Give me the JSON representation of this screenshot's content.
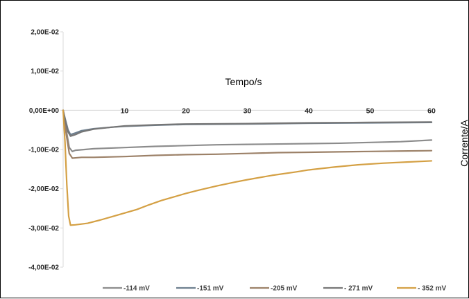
{
  "chart_data": {
    "type": "line",
    "title": "",
    "xlabel": "Tempo/s",
    "ylabel": "Corrente/A",
    "xlim": [
      0,
      60
    ],
    "ylim": [
      -0.04,
      0.02
    ],
    "x_ticks": [
      10,
      20,
      30,
      40,
      50,
      60
    ],
    "x_tick_labels": [
      "10",
      "20",
      "30",
      "40",
      "50",
      "60"
    ],
    "y_ticks": [
      0.02,
      0.01,
      0,
      -0.01,
      -0.02,
      -0.03,
      -0.04
    ],
    "y_tick_labels": [
      "2,00E-02",
      "1,00E-02",
      "0,00E+00",
      "-1,00E-02",
      "-2,00E-02",
      "-3,00E-02",
      "-4,00E-02"
    ],
    "grid": false,
    "legend_position": "bottom",
    "series": [
      {
        "name": "-114 mV",
        "color": "#8c8c8c",
        "points": [
          [
            0,
            0
          ],
          [
            0.5,
            -0.005
          ],
          [
            1,
            -0.0095
          ],
          [
            1.5,
            -0.0105
          ],
          [
            2,
            -0.0102
          ],
          [
            5,
            -0.0098
          ],
          [
            10,
            -0.0095
          ],
          [
            15,
            -0.0092
          ],
          [
            20,
            -0.009
          ],
          [
            25,
            -0.0088
          ],
          [
            30,
            -0.0087
          ],
          [
            35,
            -0.0086
          ],
          [
            40,
            -0.0085
          ],
          [
            45,
            -0.0084
          ],
          [
            50,
            -0.0082
          ],
          [
            55,
            -0.008
          ],
          [
            60,
            -0.0076
          ]
        ]
      },
      {
        "name": "-151 mV",
        "color": "#6d7f8f",
        "points": [
          [
            0,
            0
          ],
          [
            0.3,
            -0.002
          ],
          [
            0.8,
            -0.005
          ],
          [
            1.2,
            -0.0062
          ],
          [
            2,
            -0.0058
          ],
          [
            3,
            -0.0052
          ],
          [
            5,
            -0.0047
          ],
          [
            8,
            -0.0043
          ],
          [
            10,
            -0.0041
          ],
          [
            15,
            -0.0038
          ],
          [
            20,
            -0.0036
          ],
          [
            30,
            -0.0035
          ],
          [
            40,
            -0.0033
          ],
          [
            50,
            -0.0032
          ],
          [
            60,
            -0.0031
          ]
        ]
      },
      {
        "name": "-205 mV",
        "color": "#9c8168",
        "points": [
          [
            0,
            0
          ],
          [
            0.5,
            -0.006
          ],
          [
            1,
            -0.011
          ],
          [
            1.5,
            -0.0122
          ],
          [
            3,
            -0.012
          ],
          [
            5,
            -0.012
          ],
          [
            10,
            -0.0118
          ],
          [
            15,
            -0.0115
          ],
          [
            20,
            -0.0113
          ],
          [
            25,
            -0.0112
          ],
          [
            30,
            -0.011
          ],
          [
            35,
            -0.0108
          ],
          [
            40,
            -0.0107
          ],
          [
            45,
            -0.0106
          ],
          [
            50,
            -0.0105
          ],
          [
            55,
            -0.0104
          ],
          [
            60,
            -0.0103
          ]
        ]
      },
      {
        "name": "- 271 mV",
        "color": "#767676",
        "points": [
          [
            0,
            0
          ],
          [
            0.4,
            -0.003
          ],
          [
            0.8,
            -0.0055
          ],
          [
            1.2,
            -0.0066
          ],
          [
            2,
            -0.0062
          ],
          [
            3,
            -0.0055
          ],
          [
            5,
            -0.0048
          ],
          [
            8,
            -0.0043
          ],
          [
            10,
            -0.004
          ],
          [
            15,
            -0.0037
          ],
          [
            20,
            -0.0035
          ],
          [
            30,
            -0.0034
          ],
          [
            40,
            -0.0032
          ],
          [
            50,
            -0.0031
          ],
          [
            60,
            -0.003
          ]
        ]
      },
      {
        "name": "- 352 mV",
        "color": "#d4a044",
        "points": [
          [
            0,
            0
          ],
          [
            0.3,
            -0.008
          ],
          [
            0.6,
            -0.019
          ],
          [
            0.9,
            -0.027
          ],
          [
            1.2,
            -0.0293
          ],
          [
            2,
            -0.0292
          ],
          [
            4,
            -0.0288
          ],
          [
            6,
            -0.028
          ],
          [
            8,
            -0.0271
          ],
          [
            10,
            -0.0262
          ],
          [
            12,
            -0.0253
          ],
          [
            14,
            -0.0241
          ],
          [
            16,
            -0.023
          ],
          [
            18,
            -0.0221
          ],
          [
            20,
            -0.0212
          ],
          [
            22,
            -0.0204
          ],
          [
            25,
            -0.0193
          ],
          [
            28,
            -0.0183
          ],
          [
            30,
            -0.0177
          ],
          [
            34,
            -0.0166
          ],
          [
            38,
            -0.0157
          ],
          [
            40,
            -0.0152
          ],
          [
            44,
            -0.0145
          ],
          [
            48,
            -0.0139
          ],
          [
            52,
            -0.0135
          ],
          [
            56,
            -0.0132
          ],
          [
            60,
            -0.0129
          ]
        ]
      }
    ]
  }
}
